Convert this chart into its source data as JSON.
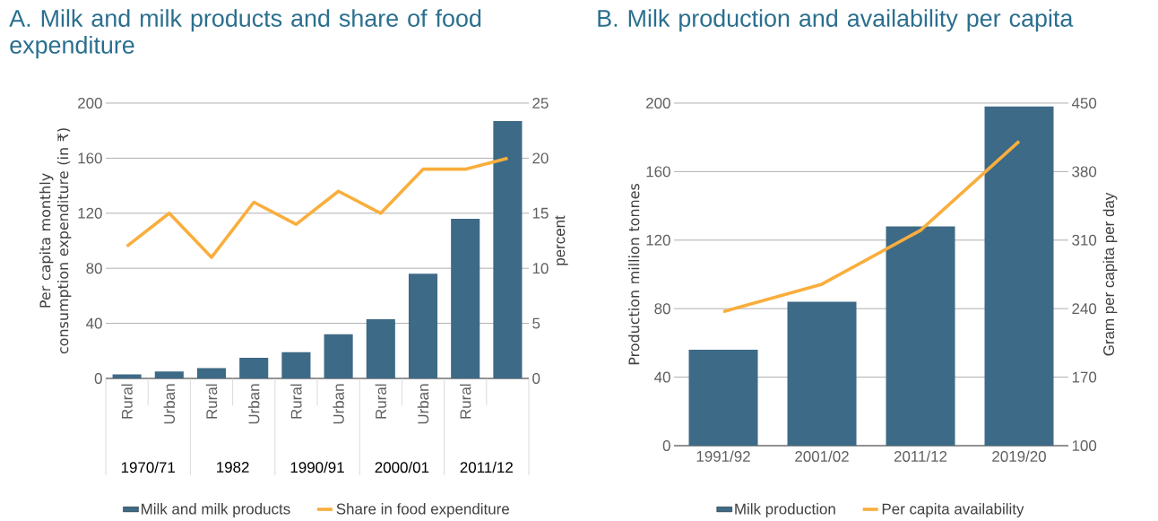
{
  "chart_data": [
    {
      "type": "bar",
      "title": "A. Milk and milk products and share of food expenditure",
      "ylabel": "Per capita monthly consumption expenditure (in ₹)",
      "y2label": "percent",
      "categories": [
        "Rural",
        "Urban",
        "Rural",
        "Urban",
        "Rural",
        "Urban",
        "Rural",
        "Urban",
        "Rural",
        null
      ],
      "annotations": [
        "1970/71",
        "1982",
        "1990/91",
        "2000/01",
        "2011/12"
      ],
      "series": [
        {
          "name": "Milk and milk products",
          "color": "#3d6a86",
          "values": [
            3,
            5,
            7.5,
            15,
            19,
            32,
            43,
            76,
            116,
            187
          ]
        },
        {
          "name": "Share in food expenditure",
          "type": "line",
          "axis": "y2",
          "color": "#f9ae3d",
          "values": [
            12,
            15,
            11,
            16,
            14,
            17,
            15,
            19,
            19,
            20
          ]
        }
      ],
      "ylim": [
        0,
        200
      ],
      "yticks": [
        0,
        40,
        80,
        120,
        160,
        200
      ],
      "y2lim": [
        0,
        25
      ],
      "y2ticks": [
        0,
        5,
        10,
        15,
        20,
        25
      ],
      "grid": "y",
      "legend": "bottom"
    },
    {
      "type": "bar",
      "title": "B. Milk production and availability per capita",
      "ylabel": "Production million tonnes",
      "y2label": "Gram per capita per day",
      "categories": [
        "1991/92",
        "2001/02",
        "2011/12",
        "2019/20"
      ],
      "series": [
        {
          "name": "Milk production",
          "color": "#3d6a86",
          "values": [
            56,
            84,
            128,
            198
          ]
        },
        {
          "name": "Per capita availability",
          "type": "line",
          "axis": "y2",
          "color": "#f9ae3d",
          "values": [
            237,
            265,
            320,
            411
          ]
        }
      ],
      "ylim": [
        0,
        200
      ],
      "yticks": [
        0,
        40,
        80,
        120,
        160,
        200
      ],
      "y2lim": [
        100,
        450
      ],
      "y2ticks": [
        100,
        170,
        240,
        310,
        380,
        450
      ],
      "grid": "y",
      "legend": "bottom"
    }
  ]
}
